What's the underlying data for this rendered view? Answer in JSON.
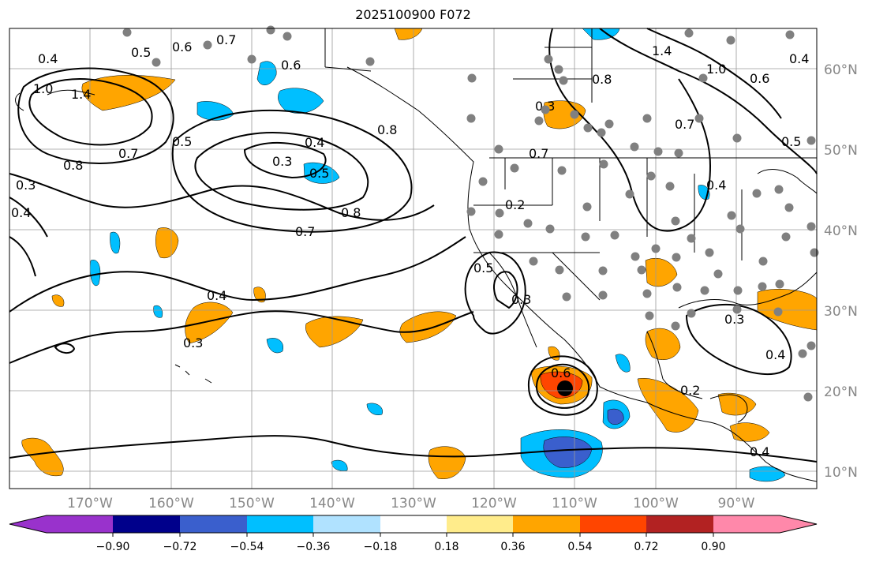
{
  "title": "2025100900 F072",
  "lat_labels": [
    "60°N",
    "50°N",
    "40°N",
    "30°N",
    "20°N",
    "10°N"
  ],
  "lon_labels": [
    "170°W",
    "160°W",
    "150°W",
    "140°W",
    "130°W",
    "120°W",
    "110°W",
    "100°W",
    "90°W"
  ],
  "colorbar": {
    "colors": [
      "#9932cc",
      "#00008b",
      "#3a5fcd",
      "#00bfff",
      "#b0e2ff",
      "#ffffff",
      "#ffec8b",
      "#ffa500",
      "#ff4500",
      "#b22222",
      "#ff88aa"
    ],
    "tick_labels": [
      "−0.90",
      "−0.72",
      "−0.54",
      "−0.36",
      "−0.18",
      "0.18",
      "0.36",
      "0.54",
      "0.72",
      "0.90"
    ]
  },
  "contour_labels": [
    "0.7",
    "0.6",
    "0.4",
    "1.0",
    "1.4",
    "0.7",
    "0.5",
    "0.8",
    "0.3",
    "0.4",
    "0.4",
    "0.3",
    "0.5",
    "0.8",
    "0.7",
    "0.8",
    "0.5",
    "0.4",
    "0.3",
    "1.4",
    "0.8",
    "1.0",
    "0.6",
    "0.4",
    "0.7",
    "0.5",
    "0.4",
    "0.5",
    "0.6",
    "0.3",
    "0.7",
    "0.2",
    "0.3",
    "0.4",
    "0.2",
    "0.3",
    "0.4",
    "0.6"
  ],
  "colors": {
    "grid": "#9a9a9a",
    "contour": "#000000",
    "station": "#808080",
    "coast": "#000000"
  }
}
